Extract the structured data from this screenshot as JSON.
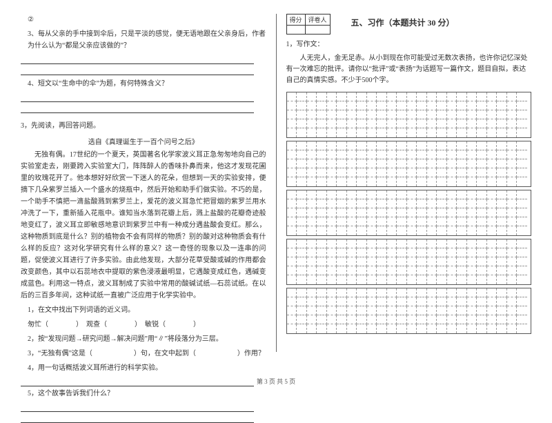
{
  "left": {
    "item2": "②",
    "q3": "3、每从父亲的手中接到伞后，只是平淡的感觉，便无语地跟在父亲身后，作者为什么认为“都是父亲应该做的”？",
    "q4": "4、短文以“生命中的伞”为题，有何特殊含义？",
    "reading_head": "3，先阅读，再回答问题。",
    "reading_title": "选自《真理诞生于一百个问号之后》",
    "passage1": "无独有偶。17世纪的一个夏天，英国著名化学家波义耳正急匆匆地向自己的实验室走去，刚要跨入实验室大门，阵阵醉人的香味扑鼻而来，他这才发现花圃里的玫瑰花开了。他本想好好欣赏一下迷人的花朵，但想到一天的实验安排，便摘下几朵紫罗兰插入一个盛水的烧瓶中，然后开始和助手们做实验。不巧的是，一个助手不慎把一滴盐酸溅到紫罗兰上，爱花的波义耳急忙把冒烟的紫罗兰用水冲洗了一下，重新插入花瓶中。谁知当水落到花瓣上后，溅上盐酸的花瓣奇迹般地变红了，波义耳立即敏感地意识到紫罗兰中有一种成分遇盐酸会变红。那么，这种物质到底是什么？别的植物会不会有同样的物质？别的酸对这种物质会有什么样的反应？这对化学研究有什么样的意义？这一奇怪的现象以及一连串的问题，促使波义耳进行了许多实验。由此他发现，大部分花草受酸或碱的作用都会改变颜色，其中以石蕊地衣中提取的紫色浸液最明显，它遇酸变成红色，遇碱变成蓝色。利用这一特点，波义耳制成了实验中常用的酸碱试纸—石蕊试纸。在以后的三百多年间，这种试纸一直被广泛应用于化学实验中。",
    "sub_q1": "1，在文中找出下列词语的近义词。",
    "sub_q1_line": "匆忙（　　　　）　观查（　　　　）　敏锐（　　　　）",
    "sub_q2": "2，按“发现问题→研究问题→解决问题”用“∥”将段落分为三层。",
    "sub_q3": "3，“无独有偶”这是（　　　　　　）句，在文中起到（　　　　　　）作用？",
    "sub_q4": "4，用一句话概括波义耳所进行的科学实验。",
    "sub_q5": "5，这个故事告诉我们什么？"
  },
  "right": {
    "score_left": "得分",
    "score_right": "评卷人",
    "section_title": "五、习作（本题共计 30 分）",
    "write_head": "1，写作文：",
    "write_body": "人无完人，金无足赤。从小到现在你可能受过无数次表扬，也许你记忆深处有一次难忘的批评。请你以“批评”或“表扬”为话题写一篇作文，题目自拟，表达自己的真情实感。不少于500个字。"
  },
  "footer": "第 3 页 共 5 页",
  "grid": {
    "blocks": 5,
    "rows_per_block": 5,
    "cols": 24
  }
}
